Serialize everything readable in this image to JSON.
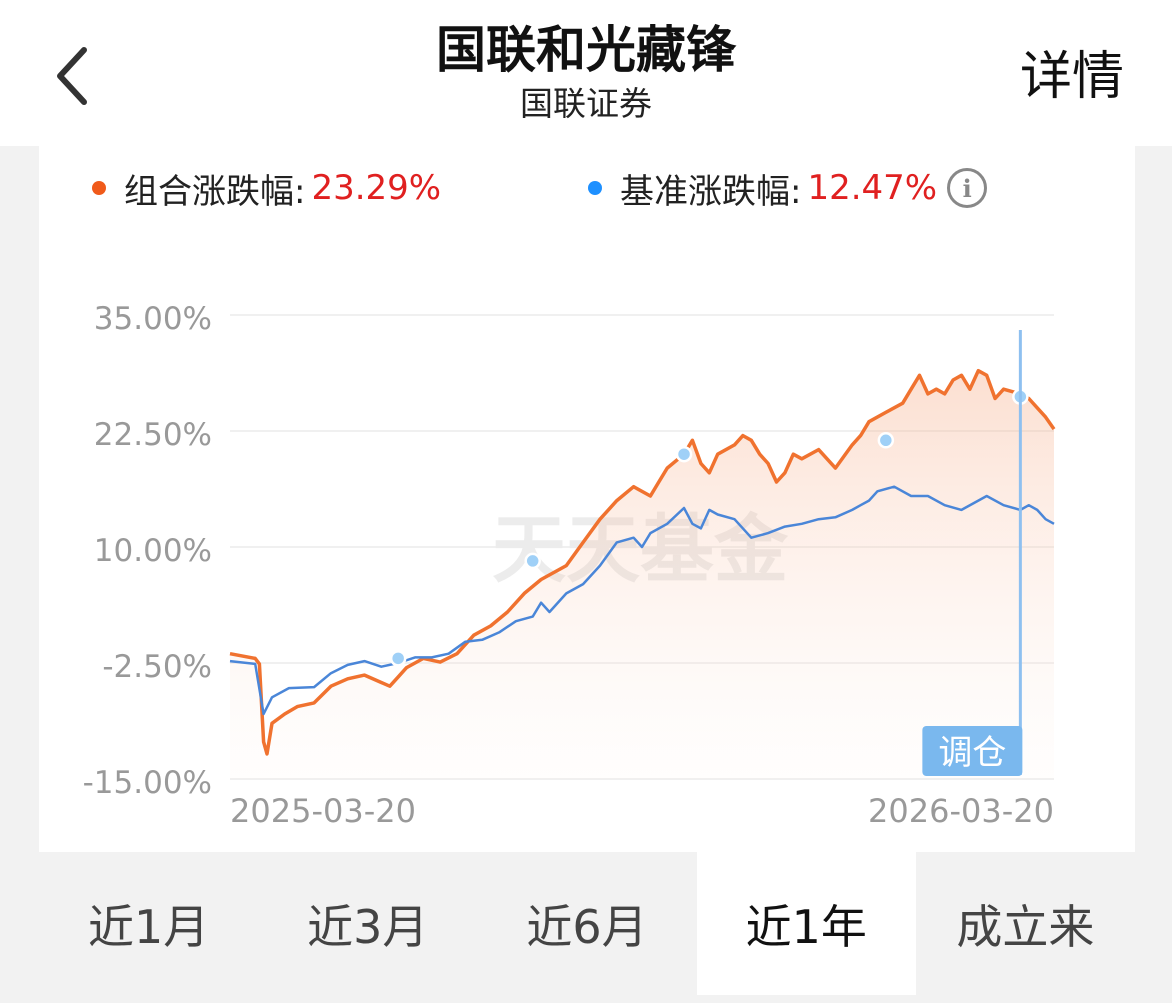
{
  "header": {
    "title": "国联和光藏锋",
    "subtitle": "国联证券",
    "detail_label": "详情",
    "back_icon": "chevron-left-icon"
  },
  "legend": {
    "portfolio": {
      "label": "组合涨跌幅:",
      "value": "23.29%",
      "color": "#f0722f"
    },
    "benchmark": {
      "label": "基准涨跌幅:",
      "value": "12.47%",
      "color": "#1e90ff"
    },
    "info_icon": "info-icon",
    "info_glyph": "i"
  },
  "chart_data": {
    "type": "line",
    "y_ticks": [
      "35.00%",
      "22.50%",
      "10.00%",
      "-2.50%",
      "-15.00%"
    ],
    "ylim": [
      -15,
      35
    ],
    "x_tick_labels": [
      "2025-03-20",
      "2026-03-20"
    ],
    "watermark": "天天基金",
    "series": [
      {
        "color": "#f0722f",
        "points": [
          [
            0,
            -1.5
          ],
          [
            3,
            -2
          ],
          [
            3.5,
            -2.6
          ],
          [
            4,
            -11
          ],
          [
            4.4,
            -12.3
          ],
          [
            5,
            -9
          ],
          [
            6.5,
            -8
          ],
          [
            8,
            -7.2
          ],
          [
            10,
            -6.8
          ],
          [
            12,
            -5
          ],
          [
            14,
            -4.2
          ],
          [
            16,
            -3.8
          ],
          [
            18,
            -4.6
          ],
          [
            19,
            -5
          ],
          [
            20,
            -4
          ],
          [
            21,
            -3
          ],
          [
            23,
            -2
          ],
          [
            25,
            -2.4
          ],
          [
            27,
            -1.5
          ],
          [
            29,
            0.5
          ],
          [
            31,
            1.5
          ],
          [
            33,
            3
          ],
          [
            35,
            5
          ],
          [
            37,
            6.5
          ],
          [
            40,
            8
          ],
          [
            42,
            10.5
          ],
          [
            44,
            13
          ],
          [
            46,
            15
          ],
          [
            48,
            16.5
          ],
          [
            50,
            15.5
          ],
          [
            51,
            17
          ],
          [
            52,
            18.5
          ],
          [
            54,
            20
          ],
          [
            55,
            21.5
          ],
          [
            56,
            19
          ],
          [
            57,
            18
          ],
          [
            58,
            20
          ],
          [
            60,
            21
          ],
          [
            61,
            22
          ],
          [
            62,
            21.5
          ],
          [
            63,
            20
          ],
          [
            64,
            19
          ],
          [
            65,
            17
          ],
          [
            66,
            18
          ],
          [
            67,
            20
          ],
          [
            68,
            19.5
          ],
          [
            70,
            20.5
          ],
          [
            72,
            18.5
          ],
          [
            74,
            21
          ],
          [
            75,
            22
          ],
          [
            76,
            23.5
          ],
          [
            78,
            24.5
          ],
          [
            80,
            25.5
          ],
          [
            81,
            27
          ],
          [
            82,
            28.5
          ],
          [
            83,
            26.5
          ],
          [
            84,
            27
          ],
          [
            85,
            26.5
          ],
          [
            86,
            28
          ],
          [
            87,
            28.5
          ],
          [
            88,
            27
          ],
          [
            89,
            29
          ],
          [
            90,
            28.5
          ],
          [
            91,
            26
          ],
          [
            92,
            27
          ],
          [
            94,
            26.5
          ],
          [
            95,
            26
          ],
          [
            96,
            25
          ],
          [
            97,
            24
          ],
          [
            98,
            22.7
          ]
        ]
      },
      {
        "color": "#4a86d8",
        "points": [
          [
            0,
            -2.3
          ],
          [
            3,
            -2.6
          ],
          [
            4,
            -8
          ],
          [
            5,
            -6.2
          ],
          [
            7,
            -5.2
          ],
          [
            10,
            -5.1
          ],
          [
            12,
            -3.6
          ],
          [
            14,
            -2.7
          ],
          [
            16,
            -2.3
          ],
          [
            18,
            -2.9
          ],
          [
            20,
            -2.5
          ],
          [
            22,
            -1.9
          ],
          [
            24,
            -1.9
          ],
          [
            26,
            -1.5
          ],
          [
            28,
            -0.2
          ],
          [
            30,
            0
          ],
          [
            32,
            0.8
          ],
          [
            34,
            2
          ],
          [
            36,
            2.5
          ],
          [
            37,
            4
          ],
          [
            38,
            3
          ],
          [
            40,
            5
          ],
          [
            42,
            6
          ],
          [
            44,
            8
          ],
          [
            46,
            10.5
          ],
          [
            48,
            11
          ],
          [
            49,
            10
          ],
          [
            50,
            11.5
          ],
          [
            52,
            12.5
          ],
          [
            54,
            14.2
          ],
          [
            55,
            12.5
          ],
          [
            56,
            12
          ],
          [
            57,
            14
          ],
          [
            58,
            13.5
          ],
          [
            60,
            13
          ],
          [
            62,
            11
          ],
          [
            64,
            11.5
          ],
          [
            66,
            12.2
          ],
          [
            68,
            12.5
          ],
          [
            70,
            13
          ],
          [
            72,
            13.2
          ],
          [
            74,
            14
          ],
          [
            75,
            14.5
          ],
          [
            76,
            15
          ],
          [
            77,
            16
          ],
          [
            79,
            16.5
          ],
          [
            81,
            15.5
          ],
          [
            83,
            15.5
          ],
          [
            85,
            14.5
          ],
          [
            87,
            14
          ],
          [
            89,
            15
          ],
          [
            90,
            15.5
          ],
          [
            92,
            14.5
          ],
          [
            94,
            14
          ],
          [
            95,
            14.5
          ],
          [
            96,
            14
          ],
          [
            97,
            13
          ],
          [
            98,
            12.5
          ]
        ]
      }
    ],
    "rebalance_markers": [
      [
        20,
        -2
      ],
      [
        36,
        8.5
      ],
      [
        54,
        20
      ],
      [
        78,
        21.5
      ],
      [
        94,
        26.2
      ]
    ],
    "rebalance_label": "调仓"
  },
  "tabs": [
    {
      "label": "近1月",
      "active": false
    },
    {
      "label": "近3月",
      "active": false
    },
    {
      "label": "近6月",
      "active": false
    },
    {
      "label": "近1年",
      "active": true
    },
    {
      "label": "成立来",
      "active": false
    }
  ]
}
